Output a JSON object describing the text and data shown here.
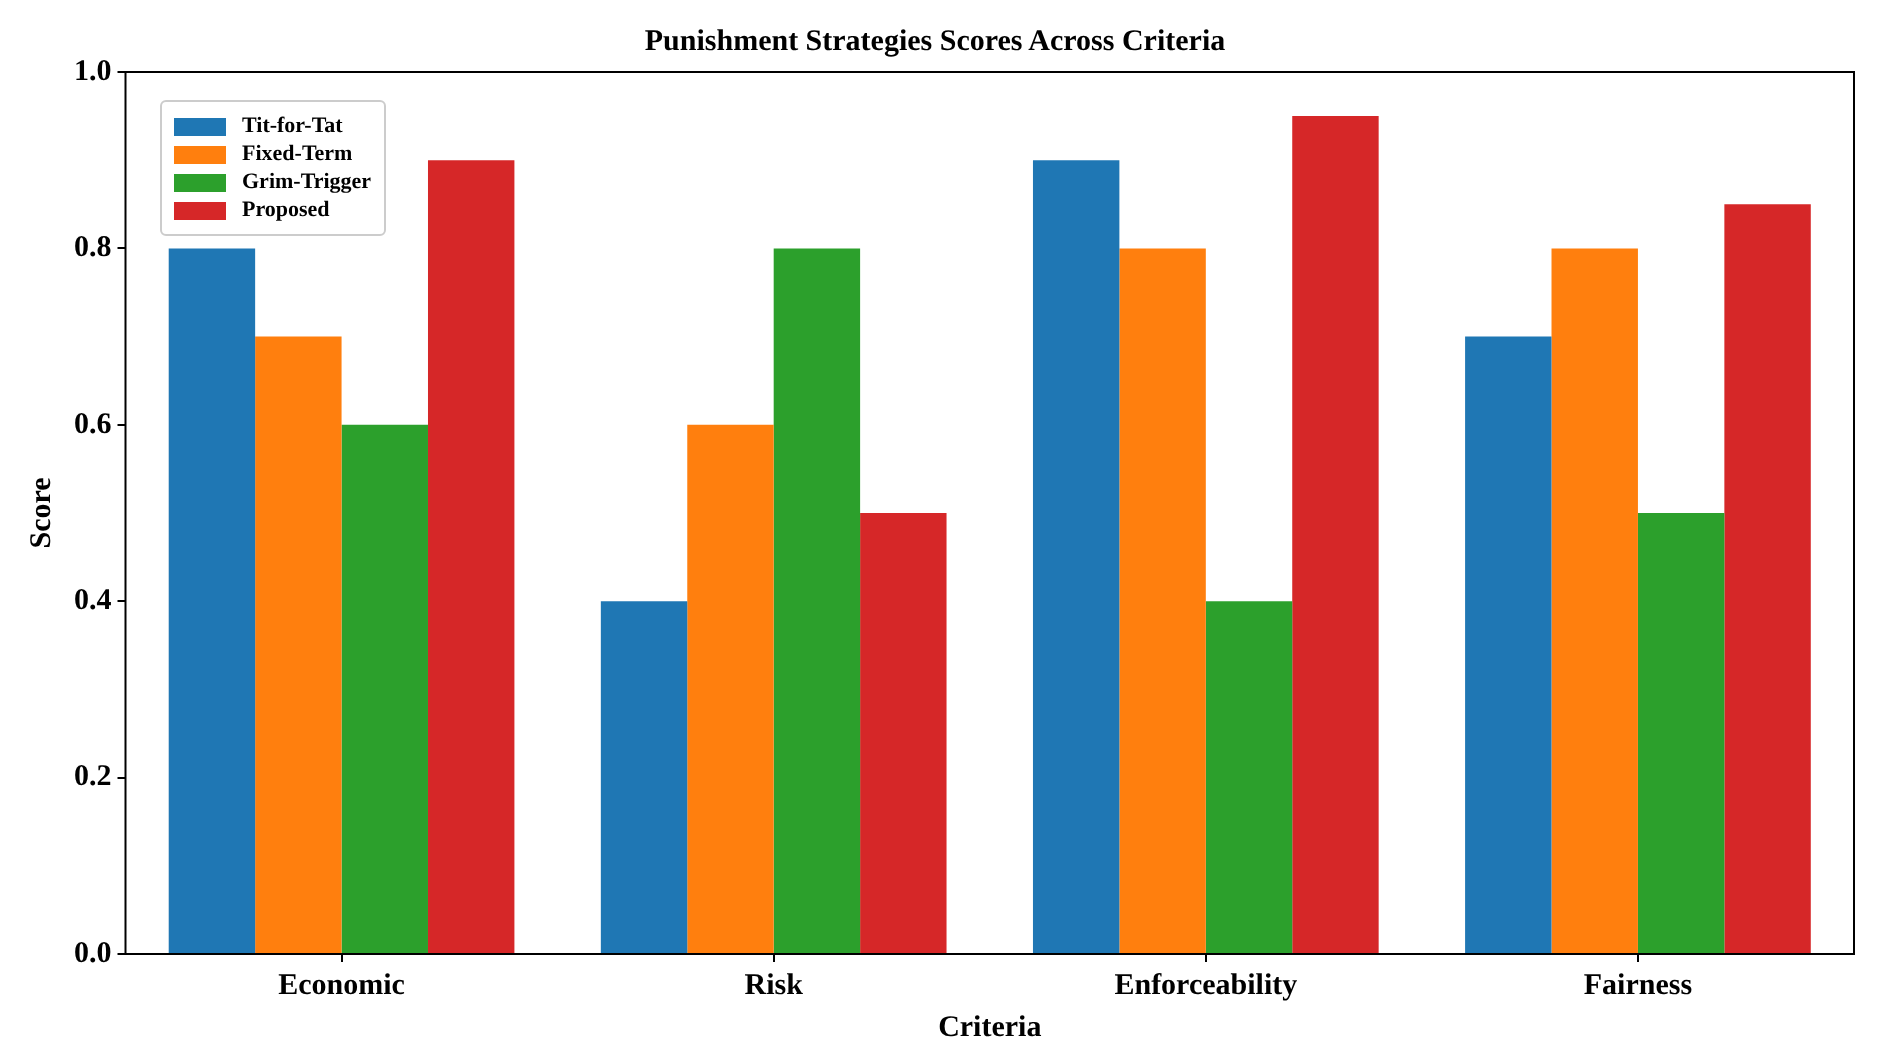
{
  "chart_data": {
    "type": "bar",
    "title": "Punishment Strategies Scores Across Criteria",
    "xlabel": "Criteria",
    "ylabel": "Score",
    "categories": [
      "Economic",
      "Risk",
      "Enforceability",
      "Fairness"
    ],
    "series": [
      {
        "name": "Tit-for-Tat",
        "color": "#1f77b4",
        "values": [
          0.8,
          0.4,
          0.9,
          0.7
        ]
      },
      {
        "name": "Fixed-Term",
        "color": "#ff7f0e",
        "values": [
          0.7,
          0.6,
          0.8,
          0.8
        ]
      },
      {
        "name": "Grim-Trigger",
        "color": "#2ca02c",
        "values": [
          0.6,
          0.8,
          0.4,
          0.5
        ]
      },
      {
        "name": "Proposed",
        "color": "#d62728",
        "values": [
          0.9,
          0.5,
          0.95,
          0.85
        ]
      }
    ],
    "ylim": [
      0,
      1
    ],
    "yticks": [
      {
        "value": 0,
        "label": "0.0"
      },
      {
        "value": 0.2,
        "label": "0.2"
      },
      {
        "value": 0.4,
        "label": "0.4"
      },
      {
        "value": 0.6,
        "label": "0.6"
      },
      {
        "value": 0.8,
        "label": "0.8"
      },
      {
        "value": 1,
        "label": "1.0"
      }
    ],
    "grid": false,
    "legend": "top left"
  }
}
